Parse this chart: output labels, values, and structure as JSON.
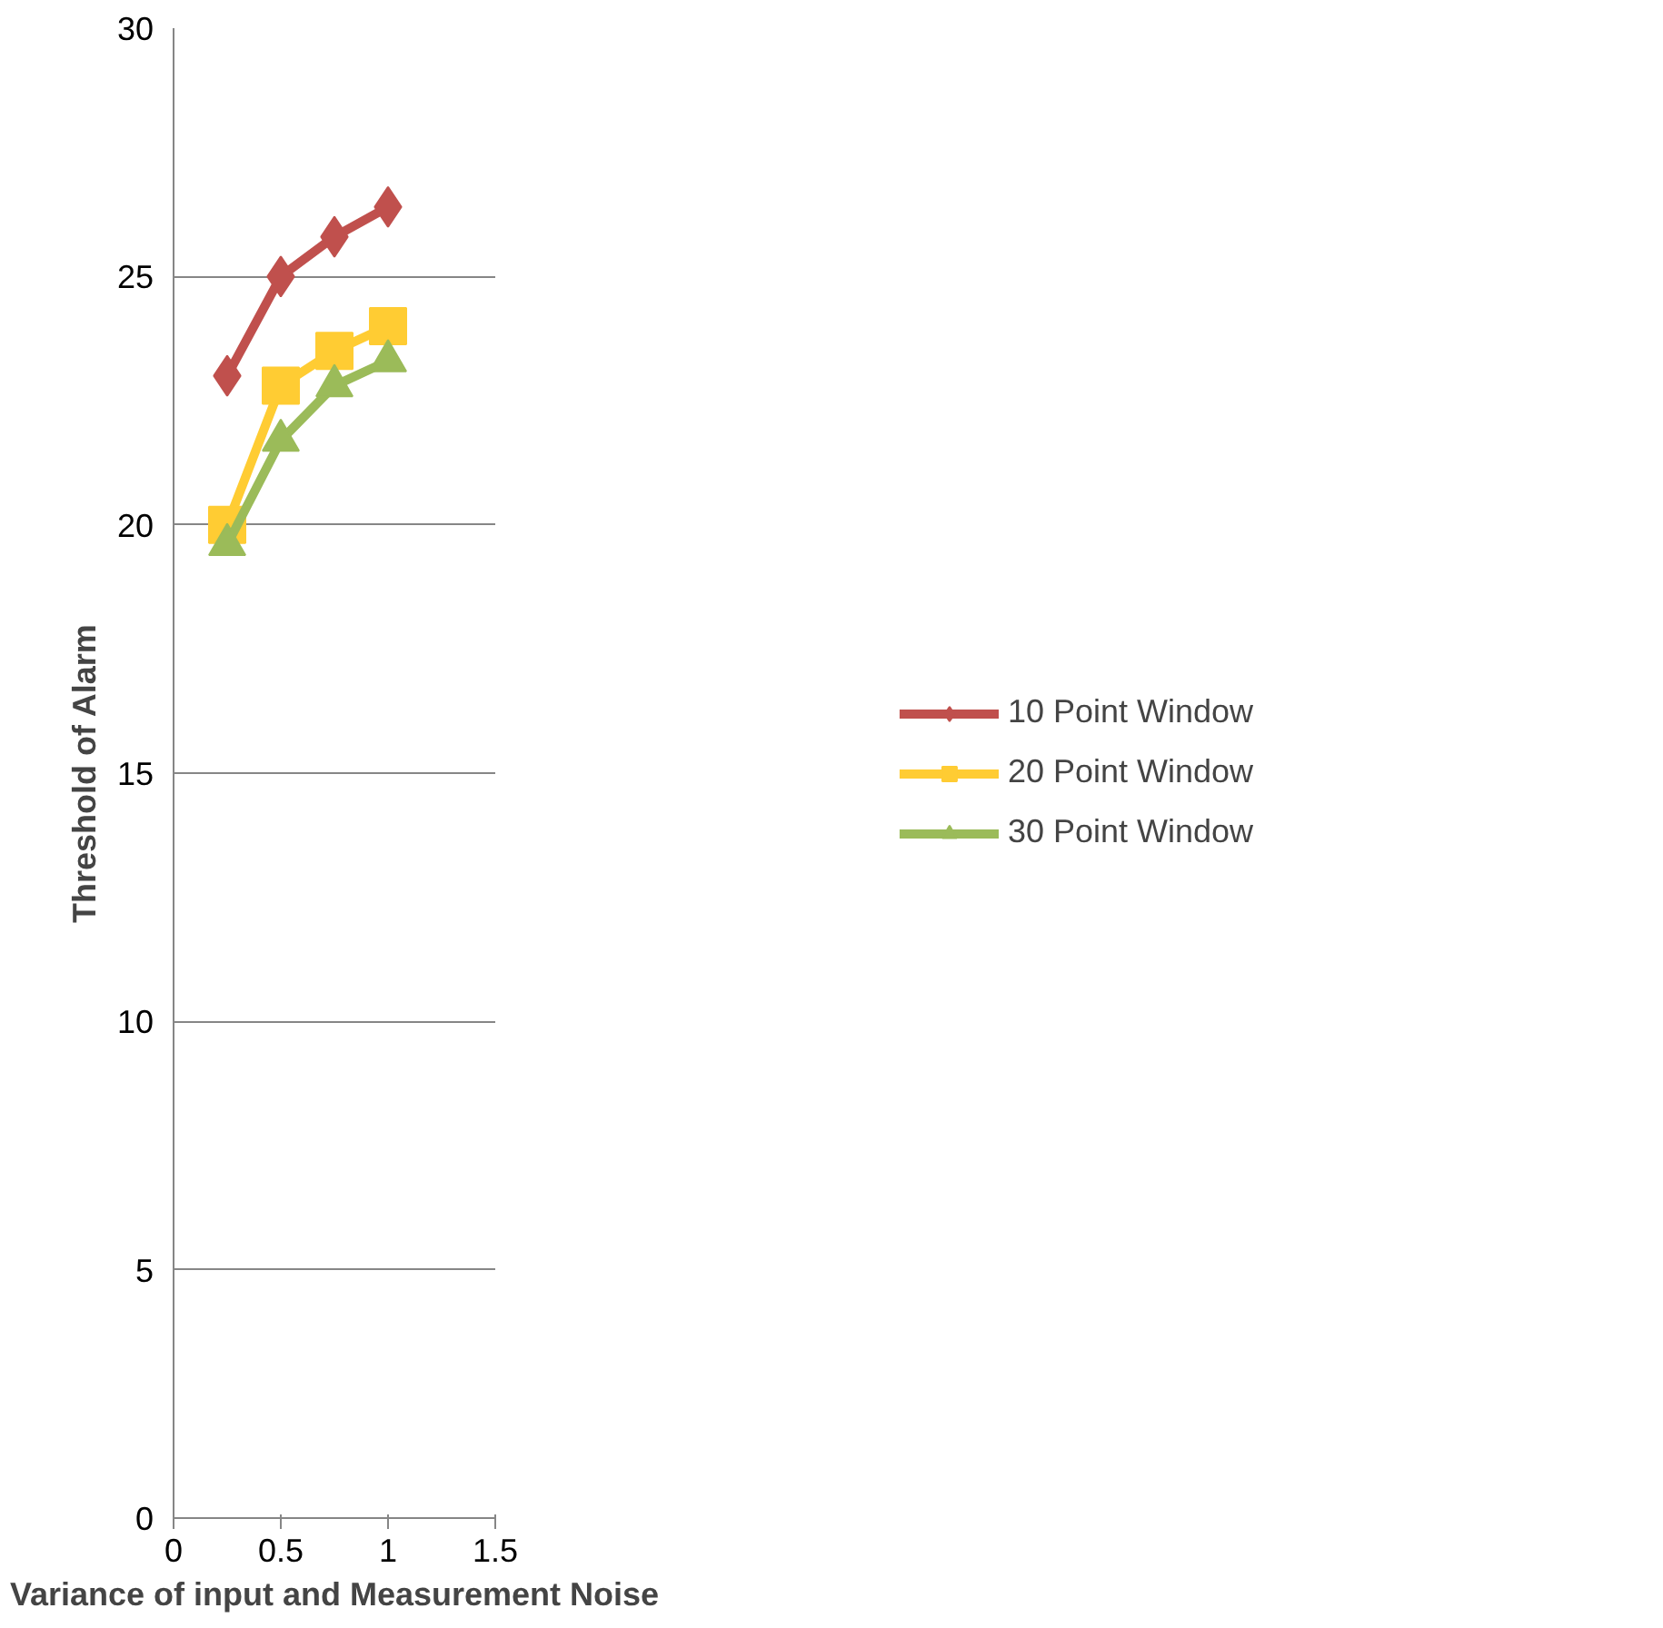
{
  "chart_data": {
    "type": "line",
    "xlabel": "Variance of input and Measurement Noise",
    "ylabel": "Threshold of Alarm",
    "x": [
      0.25,
      0.5,
      0.75,
      1
    ],
    "series": [
      {
        "name": "10 Point Window",
        "color": "#c0504d",
        "marker": "diamond",
        "values": [
          23.0,
          25.0,
          25.8,
          26.4
        ]
      },
      {
        "name": "20 Point Window",
        "color": "#ffcc33",
        "marker": "square",
        "values": [
          20.0,
          22.8,
          23.5,
          24.0
        ]
      },
      {
        "name": "30 Point Window",
        "color": "#9bbb59",
        "marker": "triangle",
        "values": [
          19.6,
          21.7,
          22.8,
          23.3
        ]
      }
    ],
    "xlim": [
      0,
      1.5
    ],
    "xticks": [
      0,
      0.5,
      1,
      1.5
    ],
    "ylim": [
      0,
      30
    ],
    "yticks": [
      0,
      5,
      10,
      15,
      20,
      25,
      30
    ],
    "grid": "y",
    "legend": "right",
    "line_style": "solid"
  }
}
